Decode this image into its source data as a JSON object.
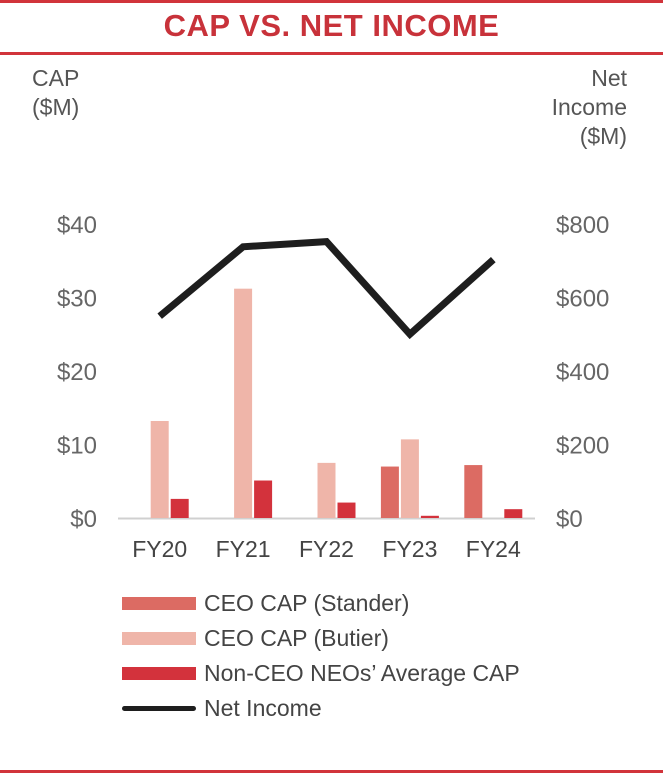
{
  "title": "CAP VS. NET INCOME",
  "left_axis_title": [
    "CAP",
    "($M)"
  ],
  "right_axis_title": [
    "Net",
    "Income",
    "($M)"
  ],
  "chart_data": {
    "type": "bar",
    "categories": [
      "FY20",
      "FY21",
      "FY22",
      "FY23",
      "FY24"
    ],
    "series": [
      {
        "name": "CEO CAP (Stander)",
        "kind": "bar",
        "axis": "left",
        "color": "#dc6b63",
        "values": [
          null,
          null,
          null,
          7.0,
          7.2
        ]
      },
      {
        "name": "CEO CAP (Butier)",
        "kind": "bar",
        "axis": "left",
        "color": "#efb5a9",
        "values": [
          13.2,
          31.2,
          7.5,
          10.7,
          null
        ]
      },
      {
        "name": "Non-CEO NEOs’ Average CAP",
        "kind": "bar",
        "axis": "left",
        "color": "#d3323c",
        "values": [
          2.6,
          5.1,
          2.1,
          0.3,
          1.2
        ]
      },
      {
        "name": "Net Income",
        "kind": "line",
        "axis": "right",
        "color": "#1e1e1e",
        "values": [
          549,
          738,
          752,
          500,
          703
        ]
      }
    ],
    "left_axis": {
      "ticks": [
        0,
        10,
        20,
        30,
        40
      ],
      "tick_labels": [
        "$0",
        "$10",
        "$20",
        "$30",
        "$40"
      ],
      "ylim": [
        0,
        40
      ]
    },
    "right_axis": {
      "ticks": [
        0,
        200,
        400,
        600,
        800
      ],
      "tick_labels": [
        "$0",
        "$200",
        "$400",
        "$600",
        "$800"
      ],
      "ylim": [
        0,
        800
      ]
    },
    "legend_position": "bottom"
  }
}
